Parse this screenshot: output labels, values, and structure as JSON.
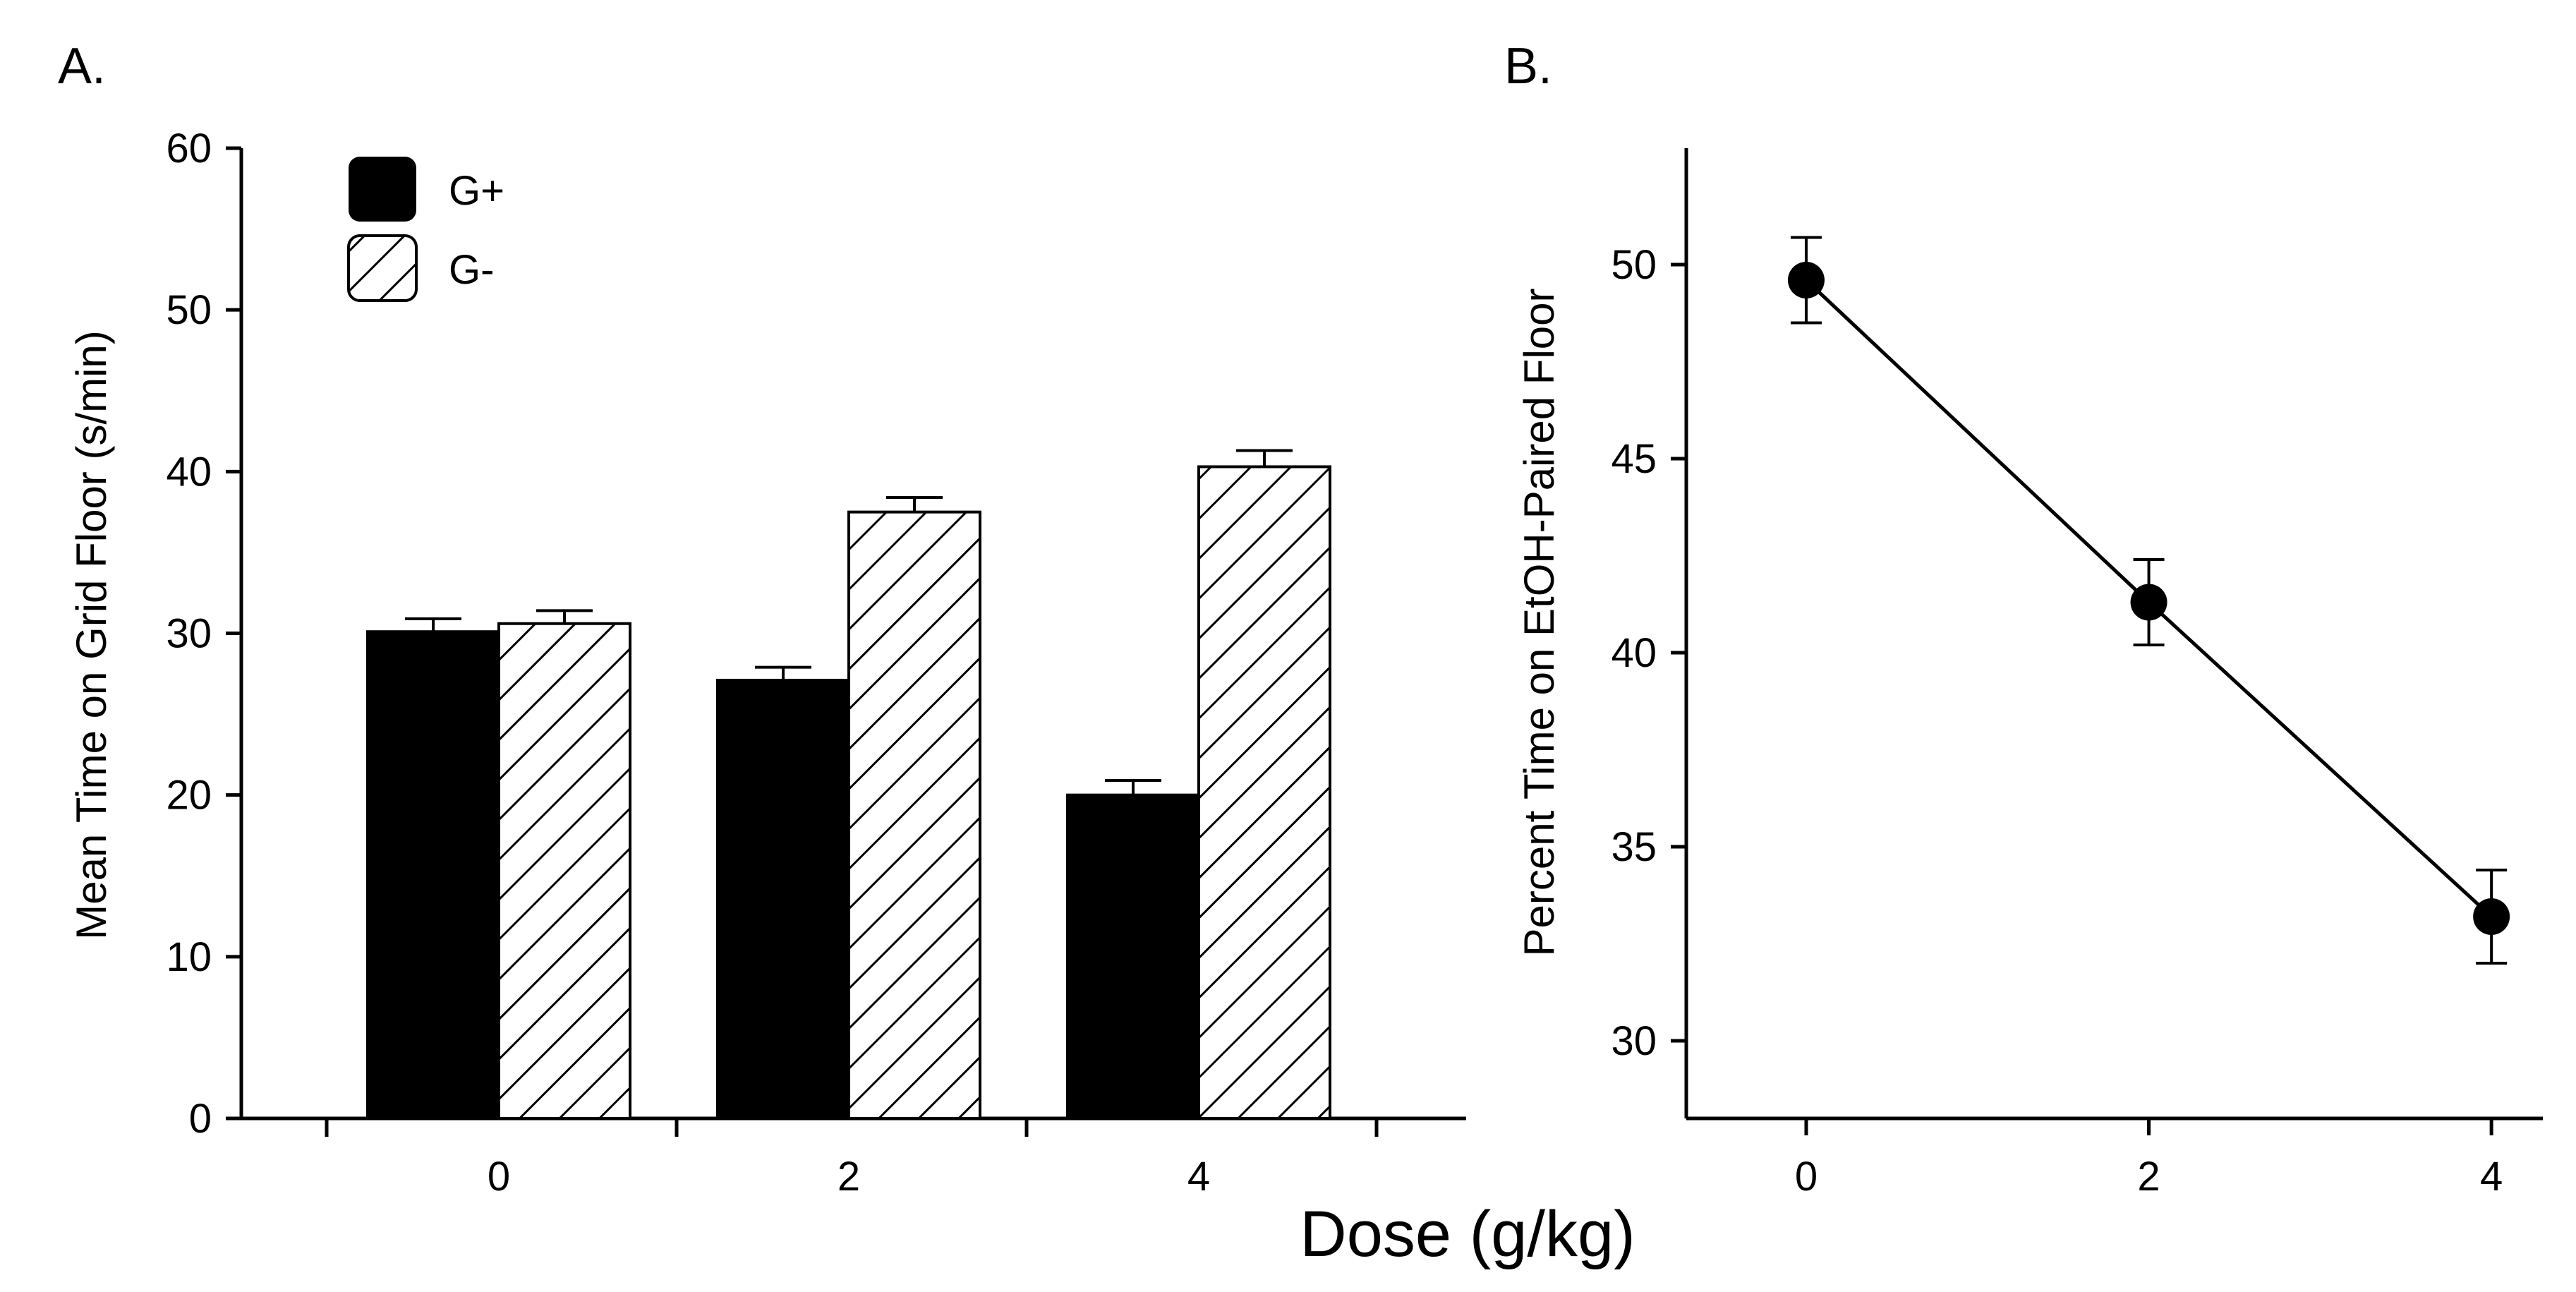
{
  "figure": {
    "shared_xlabel": "Dose (g/kg)"
  },
  "chart_data": [
    {
      "type": "bar",
      "panel_label": "A.",
      "categories": [
        "0",
        "2",
        "4"
      ],
      "series": [
        {
          "name": "G+",
          "fill": "solid-black",
          "values": [
            30.1,
            27.1,
            20.0
          ],
          "errors": [
            0.8,
            0.8,
            0.9
          ]
        },
        {
          "name": "G-",
          "fill": "diagonal-hatch",
          "values": [
            30.6,
            37.5,
            40.3
          ],
          "errors": [
            0.8,
            0.9,
            1.0
          ]
        }
      ],
      "xlabel": "",
      "ylabel": "Mean Time on Grid Floor (s/min)",
      "ylim": [
        0,
        60
      ],
      "yticks": [
        0,
        10,
        20,
        30,
        40,
        50,
        60
      ],
      "legend_position": "top-left",
      "grid": false
    },
    {
      "type": "line",
      "panel_label": "B.",
      "x": [
        0,
        2,
        4
      ],
      "xticks": [
        "0",
        "2",
        "4"
      ],
      "series": [
        {
          "values": [
            49.6,
            41.3,
            33.2
          ],
          "errors": [
            1.1,
            1.1,
            1.2
          ]
        }
      ],
      "xlabel": "",
      "ylabel": "Percent Time on EtOH-Paired Floor",
      "xlim": [
        -0.7,
        4.3
      ],
      "ylim": [
        28,
        53
      ],
      "yticks": [
        30,
        35,
        40,
        45,
        50
      ],
      "grid": false
    }
  ],
  "colors": {
    "ink": "#000000",
    "background": "#ffffff"
  }
}
